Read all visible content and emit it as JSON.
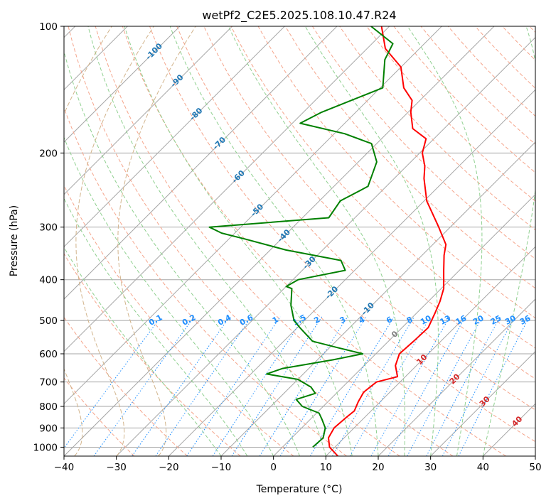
{
  "chart_data": {
    "type": "line",
    "title": "wetPf2_C2E5.2025.108.10.47.R24",
    "xlabel": "Temperature (°C)",
    "ylabel": "Pressure (hPa)",
    "xlim": [
      -40,
      50
    ],
    "ylim": [
      1050,
      100
    ],
    "y_scale": "log",
    "skew": true,
    "grid": true,
    "x_ticks": [
      -40,
      -30,
      -20,
      -10,
      0,
      10,
      20,
      30,
      40,
      50
    ],
    "y_ticks": [
      100,
      200,
      300,
      400,
      500,
      600,
      700,
      800,
      900,
      1000
    ],
    "series": [
      {
        "role": "temperature",
        "color": "#ff0000",
        "points": [
          [
            1050,
            12.3
          ],
          [
            1000,
            9.0
          ],
          [
            950,
            7.0
          ],
          [
            900,
            6.2
          ],
          [
            850,
            6.5
          ],
          [
            820,
            6.8
          ],
          [
            780,
            5.8
          ],
          [
            740,
            5.0
          ],
          [
            700,
            5.5
          ],
          [
            680,
            8.5
          ],
          [
            640,
            6.0
          ],
          [
            600,
            4.5
          ],
          [
            560,
            4.8
          ],
          [
            520,
            5.0
          ],
          [
            480,
            3.5
          ],
          [
            450,
            2.2
          ],
          [
            420,
            0.5
          ],
          [
            380,
            -3.0
          ],
          [
            350,
            -5.8
          ],
          [
            330,
            -7.5
          ],
          [
            300,
            -12.2
          ],
          [
            260,
            -19.5
          ],
          [
            230,
            -24.3
          ],
          [
            215,
            -26.5
          ],
          [
            200,
            -29.5
          ],
          [
            185,
            -31.5
          ],
          [
            175,
            -36.0
          ],
          [
            160,
            -39.5
          ],
          [
            150,
            -41.5
          ],
          [
            140,
            -45.5
          ],
          [
            125,
            -50.0
          ],
          [
            113,
            -56.5
          ],
          [
            100,
            -61.5
          ]
        ]
      },
      {
        "role": "dewpoint",
        "color": "#008000",
        "points": [
          [
            1000,
            5.8
          ],
          [
            950,
            6.0
          ],
          [
            900,
            4.5
          ],
          [
            860,
            2.3
          ],
          [
            830,
            0.5
          ],
          [
            800,
            -4.0
          ],
          [
            770,
            -6.5
          ],
          [
            745,
            -4.0
          ],
          [
            720,
            -6.0
          ],
          [
            690,
            -10.0
          ],
          [
            670,
            -17.0
          ],
          [
            650,
            -15.0
          ],
          [
            620,
            -7.0
          ],
          [
            600,
            -2.5
          ],
          [
            580,
            -8.5
          ],
          [
            560,
            -14.5
          ],
          [
            520,
            -19.5
          ],
          [
            500,
            -22.0
          ],
          [
            460,
            -25.5
          ],
          [
            420,
            -28.5
          ],
          [
            415,
            -30.0
          ],
          [
            400,
            -29.0
          ],
          [
            380,
            -21.8
          ],
          [
            360,
            -24.5
          ],
          [
            340,
            -37.0
          ],
          [
            320,
            -47.0
          ],
          [
            310,
            -52.5
          ],
          [
            300,
            -56.0
          ],
          [
            285,
            -35.0
          ],
          [
            260,
            -36.0
          ],
          [
            240,
            -33.5
          ],
          [
            210,
            -36.5
          ],
          [
            190,
            -41.0
          ],
          [
            180,
            -48.0
          ],
          [
            170,
            -58.5
          ],
          [
            160,
            -56.5
          ],
          [
            140,
            -49.5
          ],
          [
            120,
            -54.5
          ],
          [
            110,
            -56.0
          ],
          [
            100,
            -63.5
          ]
        ]
      }
    ],
    "dry_adiabat_thetas_c": [
      -30,
      -20,
      -10,
      0,
      10,
      20,
      30,
      40,
      50,
      60,
      70,
      80,
      90,
      100,
      110,
      120,
      130,
      140,
      150,
      160,
      170,
      180,
      190,
      200,
      210,
      220
    ],
    "moist_adiabat_start_c": [
      -10,
      -5,
      0,
      5,
      10,
      15,
      20,
      25,
      30,
      35,
      40
    ],
    "mixing_ratio_lines": [
      "0.1",
      "0.2",
      "0.4",
      "0.6",
      "1",
      "1.5",
      "2",
      "3",
      "4",
      "6",
      "8",
      "10",
      "13",
      "16",
      "20",
      "25",
      "30",
      "36"
    ],
    "isotherm_labels_blue": [
      {
        "text": "-100",
        "t": -100,
        "p": 115
      },
      {
        "text": "-90",
        "t": -90,
        "p": 135
      },
      {
        "text": "-80",
        "t": -80,
        "p": 162
      },
      {
        "text": "-70",
        "t": -70,
        "p": 190
      },
      {
        "text": "-60",
        "t": -60,
        "p": 228
      },
      {
        "text": "-50",
        "t": -50,
        "p": 274
      },
      {
        "text": "-40",
        "t": -40,
        "p": 315
      },
      {
        "text": "-30",
        "t": -30,
        "p": 365
      },
      {
        "text": "-20",
        "t": -20,
        "p": 430
      },
      {
        "text": "-10",
        "t": -10,
        "p": 470
      }
    ],
    "isotherm_label_zero": {
      "text": "0",
      "t": 0,
      "p": 540
    },
    "isotherm_labels_red": [
      {
        "text": "10",
        "t": 10,
        "p": 620
      },
      {
        "text": "20",
        "t": 20,
        "p": 690
      },
      {
        "text": "30",
        "t": 30,
        "p": 780
      },
      {
        "text": "40",
        "t": 40,
        "p": 870
      }
    ],
    "colors": {
      "isotherm": "#a6a6a6",
      "isobar": "#a6a6a6",
      "dry_adiabat": "#f5a58c",
      "moist_adiabat": "#90d090",
      "mixing_ratio": "#1f8fff",
      "isotherm_label_blue": "#1f77b4",
      "isotherm_label_zero": "#808080",
      "isotherm_label_red": "#d62728",
      "upper_curve": "#d2b48c"
    }
  }
}
